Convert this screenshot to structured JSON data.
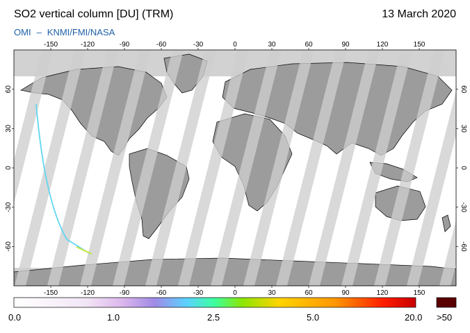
{
  "header": {
    "title": "SO2 vertical column [DU] (TRM)",
    "date": "13 March 2020",
    "credit_left": "OMI",
    "credit_sep": "–",
    "credit_right": "KNMI/FMI/NASA"
  },
  "axes": {
    "lon_ticks": [
      "-150",
      "-120",
      "-90",
      "-60",
      "-30",
      "0",
      "30",
      "60",
      "90",
      "120",
      "150"
    ],
    "lat_ticks": [
      "60",
      "30",
      "0",
      "-30",
      "-60"
    ],
    "lon_range": [
      -180,
      180
    ],
    "lat_range": [
      -90,
      90
    ]
  },
  "colorbar": {
    "labels": [
      "0.0",
      "1.0",
      "2.5",
      "5.0",
      "20.0",
      ">50"
    ],
    "colors": [
      "#ffffff",
      "#f2e6f6",
      "#dcb6ec",
      "#a08ae6",
      "#5ad2ff",
      "#3cff9c",
      "#8ee600",
      "#ffd400",
      "#ff9600",
      "#ff1e00",
      "#c80000"
    ],
    "overflow_color": "#5a0000"
  },
  "map": {
    "ocean_color": "#ffffff",
    "land_color": "#9c9c9c",
    "no_data_color": "#d2d2d2"
  }
}
